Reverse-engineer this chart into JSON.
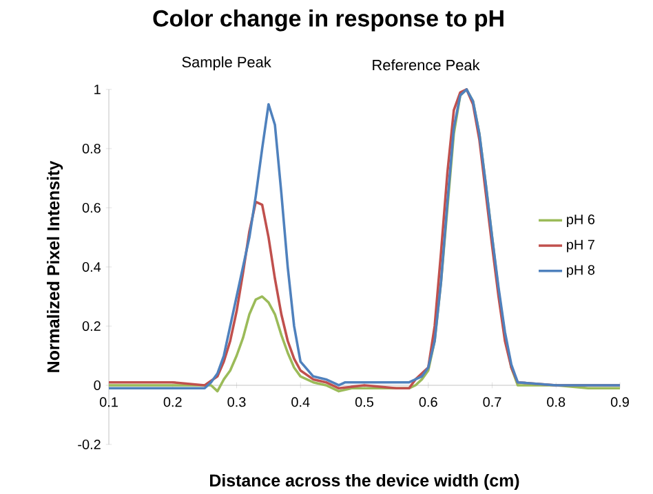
{
  "chart_data": {
    "type": "line",
    "title": "Color change in response to pH",
    "xlabel": "Distance across the device width (cm)",
    "ylabel": "Normalized Pixel Intensity",
    "annotations": [
      "Sample Peak",
      "Reference Peak"
    ],
    "xlim": [
      0.1,
      0.9
    ],
    "xticks": [
      0.1,
      0.2,
      0.3,
      0.4,
      0.5,
      0.6,
      0.7,
      0.8,
      0.9
    ],
    "ylim": [
      -0.2,
      1
    ],
    "yticks": [
      -0.2,
      0,
      0.2,
      0.4,
      0.6,
      0.8,
      1
    ],
    "grid": false,
    "legend": "right",
    "marker": "none",
    "line_style": "solid",
    "series": [
      {
        "name": "pH 6",
        "color": "#9bbb59",
        "x": [
          0.1,
          0.2,
          0.26,
          0.27,
          0.28,
          0.29,
          0.3,
          0.31,
          0.32,
          0.33,
          0.34,
          0.35,
          0.36,
          0.37,
          0.38,
          0.39,
          0.4,
          0.42,
          0.44,
          0.46,
          0.48,
          0.5,
          0.55,
          0.57,
          0.58,
          0.59,
          0.6,
          0.61,
          0.62,
          0.63,
          0.64,
          0.65,
          0.66,
          0.67,
          0.68,
          0.69,
          0.7,
          0.71,
          0.72,
          0.73,
          0.74,
          0.75,
          0.8,
          0.85,
          0.9
        ],
        "values": [
          0,
          0,
          0,
          -0.02,
          0.02,
          0.05,
          0.1,
          0.16,
          0.24,
          0.29,
          0.3,
          0.28,
          0.24,
          0.17,
          0.11,
          0.06,
          0.03,
          0.01,
          0,
          -0.02,
          -0.01,
          -0.01,
          -0.01,
          -0.01,
          0,
          0.02,
          0.05,
          0.15,
          0.35,
          0.6,
          0.85,
          0.98,
          1,
          0.96,
          0.85,
          0.68,
          0.5,
          0.32,
          0.17,
          0.06,
          0,
          0,
          0,
          -0.01,
          -0.01
        ]
      },
      {
        "name": "pH 7",
        "color": "#c0504d",
        "x": [
          0.1,
          0.2,
          0.25,
          0.27,
          0.28,
          0.29,
          0.3,
          0.31,
          0.32,
          0.33,
          0.34,
          0.35,
          0.36,
          0.37,
          0.38,
          0.39,
          0.4,
          0.42,
          0.44,
          0.46,
          0.5,
          0.55,
          0.57,
          0.58,
          0.6,
          0.61,
          0.62,
          0.63,
          0.64,
          0.65,
          0.66,
          0.67,
          0.68,
          0.69,
          0.7,
          0.71,
          0.72,
          0.73,
          0.74,
          0.8,
          0.9
        ],
        "values": [
          0.01,
          0.01,
          0,
          0.03,
          0.08,
          0.15,
          0.25,
          0.38,
          0.52,
          0.62,
          0.61,
          0.5,
          0.36,
          0.24,
          0.15,
          0.09,
          0.05,
          0.02,
          0.01,
          -0.01,
          0,
          -0.01,
          -0.01,
          0.02,
          0.06,
          0.2,
          0.45,
          0.72,
          0.93,
          0.99,
          1,
          0.95,
          0.83,
          0.65,
          0.47,
          0.3,
          0.15,
          0.06,
          0.01,
          0,
          0
        ]
      },
      {
        "name": "pH 8",
        "color": "#4f81bd",
        "x": [
          0.1,
          0.25,
          0.26,
          0.27,
          0.28,
          0.29,
          0.3,
          0.31,
          0.32,
          0.33,
          0.34,
          0.35,
          0.36,
          0.37,
          0.38,
          0.39,
          0.4,
          0.42,
          0.44,
          0.46,
          0.47,
          0.5,
          0.55,
          0.57,
          0.59,
          0.6,
          0.61,
          0.62,
          0.63,
          0.64,
          0.65,
          0.66,
          0.67,
          0.68,
          0.69,
          0.7,
          0.71,
          0.72,
          0.73,
          0.74,
          0.8,
          0.9
        ],
        "values": [
          -0.01,
          -0.01,
          0.01,
          0.04,
          0.1,
          0.2,
          0.3,
          0.4,
          0.5,
          0.64,
          0.8,
          0.95,
          0.88,
          0.65,
          0.4,
          0.2,
          0.08,
          0.03,
          0.02,
          0,
          0.01,
          0.01,
          0.01,
          0.01,
          0.03,
          0.06,
          0.15,
          0.35,
          0.62,
          0.87,
          0.98,
          1,
          0.96,
          0.85,
          0.68,
          0.5,
          0.33,
          0.18,
          0.07,
          0.01,
          0,
          0
        ]
      }
    ]
  }
}
